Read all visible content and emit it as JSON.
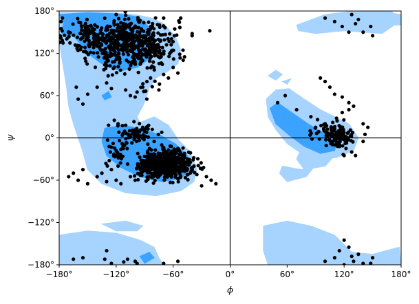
{
  "chart_data": {
    "type": "scatter",
    "xlabel": "ϕ",
    "ylabel": "ψ",
    "xlim": [
      -180,
      180
    ],
    "ylim": [
      -180,
      180
    ],
    "x_ticks": [
      {
        "value": -180,
        "label": "−180°"
      },
      {
        "value": -120,
        "label": "−120°"
      },
      {
        "value": -60,
        "label": "−60°"
      },
      {
        "value": 0,
        "label": "0°"
      },
      {
        "value": 60,
        "label": "60°"
      },
      {
        "value": 120,
        "label": "120°"
      },
      {
        "value": 180,
        "label": "180°"
      }
    ],
    "y_ticks": [
      {
        "value": -180,
        "label": "−180°"
      },
      {
        "value": -120,
        "label": "−120°"
      },
      {
        "value": -60,
        "label": "−60°"
      },
      {
        "value": 0,
        "label": "0°"
      },
      {
        "value": 60,
        "label": "60°"
      },
      {
        "value": 120,
        "label": "120°"
      },
      {
        "value": 180,
        "label": "180°"
      }
    ],
    "reference_lines": {
      "x": 0,
      "y": 0
    },
    "grid": false,
    "colors": {
      "points": "#000000",
      "allowed_region": "#a6d4ff",
      "favored_region": "#3ba3ff",
      "reference_line": "#000000"
    },
    "regions": {
      "allowed": [
        [
          [
            -180,
            178
          ],
          [
            -125,
            178
          ],
          [
            -100,
            175
          ],
          [
            -82,
            170
          ],
          [
            -70,
            162
          ],
          [
            -58,
            145
          ],
          [
            -52,
            125
          ],
          [
            -55,
            105
          ],
          [
            -65,
            95
          ],
          [
            -78,
            85
          ],
          [
            -85,
            72
          ],
          [
            -88,
            58
          ],
          [
            -92,
            45
          ],
          [
            -98,
            30
          ],
          [
            -95,
            22
          ],
          [
            -80,
            30
          ],
          [
            -65,
            18
          ],
          [
            -55,
            -2
          ],
          [
            -42,
            -20
          ],
          [
            -35,
            -45
          ],
          [
            -38,
            -62
          ],
          [
            -52,
            -75
          ],
          [
            -78,
            -82
          ],
          [
            -110,
            -78
          ],
          [
            -135,
            -65
          ],
          [
            -150,
            -45
          ],
          [
            -155,
            -20
          ],
          [
            -160,
            0
          ],
          [
            -165,
            20
          ],
          [
            -170,
            45
          ],
          [
            -172,
            70
          ],
          [
            -175,
            95
          ],
          [
            -178,
            120
          ],
          [
            -180,
            140
          ]
        ],
        [
          [
            -180,
            -138
          ],
          [
            -150,
            -132
          ],
          [
            -120,
            -135
          ],
          [
            -95,
            -145
          ],
          [
            -80,
            -155
          ],
          [
            -75,
            -170
          ],
          [
            -70,
            -180
          ],
          [
            -180,
            -180
          ]
        ],
        [
          [
            -135,
            -122
          ],
          [
            -110,
            -118
          ],
          [
            -92,
            -125
          ],
          [
            -98,
            -132
          ],
          [
            -120,
            -132
          ]
        ],
        [
          [
            38,
            55
          ],
          [
            48,
            68
          ],
          [
            62,
            70
          ],
          [
            78,
            55
          ],
          [
            95,
            40
          ],
          [
            110,
            30
          ],
          [
            125,
            20
          ],
          [
            135,
            0
          ],
          [
            130,
            -18
          ],
          [
            112,
            -28
          ],
          [
            90,
            -30
          ],
          [
            75,
            -22
          ],
          [
            60,
            -8
          ],
          [
            48,
            12
          ],
          [
            40,
            30
          ]
        ],
        [
          [
            55,
            -40
          ],
          [
            75,
            -45
          ],
          [
            88,
            -42
          ],
          [
            80,
            -55
          ],
          [
            60,
            -62
          ],
          [
            52,
            -50
          ]
        ],
        [
          [
            75,
            -15
          ],
          [
            95,
            -22
          ],
          [
            110,
            -25
          ],
          [
            100,
            -40
          ],
          [
            78,
            -45
          ],
          [
            70,
            -30
          ]
        ],
        [
          [
            70,
            160
          ],
          [
            100,
            175
          ],
          [
            130,
            180
          ],
          [
            170,
            180
          ],
          [
            178,
            165
          ],
          [
            160,
            148
          ],
          [
            120,
            152
          ],
          [
            90,
            148
          ],
          [
            72,
            152
          ]
        ],
        [
          [
            35,
            -125
          ],
          [
            60,
            -118
          ],
          [
            85,
            -125
          ],
          [
            110,
            -138
          ],
          [
            128,
            -162
          ],
          [
            150,
            -165
          ],
          [
            178,
            -155
          ],
          [
            180,
            -180
          ],
          [
            40,
            -180
          ],
          [
            35,
            -160
          ]
        ],
        [
          [
            40,
            88
          ],
          [
            48,
            96
          ],
          [
            55,
            90
          ],
          [
            48,
            82
          ]
        ],
        [
          [
            55,
            80
          ],
          [
            64,
            84
          ],
          [
            60,
            76
          ]
        ],
        [
          [
            165,
            178
          ],
          [
            180,
            175
          ],
          [
            180,
            160
          ],
          [
            168,
            160
          ]
        ]
      ],
      "favored": [
        [
          [
            -180,
            175
          ],
          [
            -150,
            178
          ],
          [
            -118,
            176
          ],
          [
            -98,
            172
          ],
          [
            -90,
            165
          ],
          [
            -82,
            150
          ],
          [
            -78,
            132
          ],
          [
            -85,
            112
          ],
          [
            -98,
            100
          ],
          [
            -115,
            95
          ],
          [
            -132,
            102
          ],
          [
            -148,
            118
          ],
          [
            -162,
            140
          ],
          [
            -172,
            155
          ]
        ],
        [
          [
            -175,
            165
          ],
          [
            -165,
            150
          ],
          [
            -170,
            140
          ],
          [
            -178,
            150
          ]
        ],
        [
          [
            -132,
            14
          ],
          [
            -112,
            18
          ],
          [
            -92,
            12
          ],
          [
            -75,
            5
          ],
          [
            -58,
            -8
          ],
          [
            -45,
            -25
          ],
          [
            -42,
            -45
          ],
          [
            -52,
            -58
          ],
          [
            -72,
            -62
          ],
          [
            -95,
            -55
          ],
          [
            -115,
            -42
          ],
          [
            -130,
            -25
          ],
          [
            -135,
            -5
          ]
        ],
        [
          [
            42,
            42
          ],
          [
            50,
            50
          ],
          [
            65,
            36
          ],
          [
            82,
            20
          ],
          [
            100,
            6
          ],
          [
            112,
            -8
          ],
          [
            110,
            -18
          ],
          [
            95,
            -22
          ],
          [
            78,
            -12
          ],
          [
            62,
            4
          ],
          [
            48,
            20
          ]
        ],
        [
          [
            -135,
            60
          ],
          [
            -128,
            66
          ],
          [
            -125,
            58
          ],
          [
            -132,
            54
          ]
        ],
        [
          [
            -95,
            -168
          ],
          [
            -85,
            -162
          ],
          [
            -80,
            -170
          ],
          [
            -90,
            -178
          ]
        ]
      ]
    },
    "clusters": [
      {
        "cx": -110,
        "cy": 140,
        "rx": 50,
        "ry": 28,
        "count": 460
      },
      {
        "cx": -85,
        "cy": 120,
        "rx": 22,
        "ry": 20,
        "count": 60
      },
      {
        "cx": -150,
        "cy": 145,
        "rx": 18,
        "ry": 20,
        "count": 55
      },
      {
        "cx": -120,
        "cy": 110,
        "rx": 20,
        "ry": 20,
        "count": 40
      },
      {
        "cx": -68,
        "cy": -38,
        "rx": 24,
        "ry": 17,
        "count": 620
      },
      {
        "cx": -100,
        "cy": 5,
        "rx": 17,
        "ry": 14,
        "count": 55
      },
      {
        "cx": -118,
        "cy": -22,
        "rx": 12,
        "ry": 16,
        "count": 30
      },
      {
        "cx": -85,
        "cy": 75,
        "rx": 10,
        "ry": 12,
        "count": 10
      },
      {
        "cx": 115,
        "cy": 0,
        "rx": 13,
        "ry": 14,
        "count": 100
      },
      {
        "cx": 100,
        "cy": 10,
        "rx": 18,
        "ry": 10,
        "count": 30
      }
    ],
    "points": [
      [
        -155,
        -170
      ],
      [
        -165,
        -172
      ],
      [
        -132,
        -172
      ],
      [
        -125,
        -178
      ],
      [
        -100,
        -175
      ],
      [
        -108,
        -172
      ],
      [
        -112,
        -176
      ],
      [
        -98,
        -178
      ],
      [
        -70,
        -178
      ],
      [
        -55,
        -175
      ],
      [
        -130,
        -160
      ],
      [
        -178,
        155
      ],
      [
        -178,
        165
      ],
      [
        -120,
        175
      ],
      [
        -70,
        170
      ],
      [
        -52,
        170
      ],
      [
        -40,
        148
      ],
      [
        -48,
        115
      ],
      [
        -55,
        92
      ],
      [
        -60,
        100
      ],
      [
        -162,
        72
      ],
      [
        -160,
        55
      ],
      [
        -155,
        48
      ],
      [
        -150,
        62
      ],
      [
        -140,
        72
      ],
      [
        -130,
        78
      ],
      [
        -125,
        70
      ],
      [
        -110,
        68
      ],
      [
        -105,
        60
      ],
      [
        -100,
        58
      ],
      [
        -98,
        65
      ],
      [
        -92,
        72
      ],
      [
        -70,
        90
      ],
      [
        -65,
        85
      ],
      [
        -75,
        68
      ],
      [
        -170,
        -55
      ],
      [
        -165,
        -50
      ],
      [
        -160,
        -60
      ],
      [
        -155,
        -45
      ],
      [
        -150,
        -65
      ],
      [
        -140,
        -55
      ],
      [
        -135,
        -50
      ],
      [
        -130,
        -62
      ],
      [
        -125,
        -45
      ],
      [
        -120,
        -60
      ],
      [
        -118,
        -40
      ],
      [
        -115,
        -65
      ],
      [
        -105,
        -55
      ],
      [
        -100,
        -60
      ],
      [
        -28,
        -42
      ],
      [
        -25,
        -55
      ],
      [
        -20,
        -60
      ],
      [
        -15,
        -65
      ],
      [
        -30,
        -68
      ],
      [
        -35,
        -52
      ],
      [
        -38,
        -40
      ],
      [
        -45,
        -30
      ],
      [
        -48,
        -22
      ],
      [
        -55,
        -15
      ],
      [
        -62,
        -12
      ],
      [
        -72,
        -10
      ],
      [
        -80,
        -5
      ],
      [
        -88,
        8
      ],
      [
        -82,
        12
      ],
      [
        -72,
        8
      ],
      [
        -92,
        15
      ],
      [
        -110,
        18
      ],
      [
        -118,
        20
      ],
      [
        -122,
        25
      ],
      [
        -128,
        18
      ],
      [
        100,
        170
      ],
      [
        110,
        165
      ],
      [
        118,
        158
      ],
      [
        125,
        150
      ],
      [
        132,
        162
      ],
      [
        140,
        150
      ],
      [
        148,
        158
      ],
      [
        150,
        145
      ],
      [
        128,
        175
      ],
      [
        135,
        168
      ],
      [
        95,
        85
      ],
      [
        100,
        80
      ],
      [
        105,
        72
      ],
      [
        110,
        62
      ],
      [
        118,
        58
      ],
      [
        125,
        50
      ],
      [
        130,
        45
      ],
      [
        125,
        40
      ],
      [
        118,
        36
      ],
      [
        112,
        28
      ],
      [
        108,
        22
      ],
      [
        100,
        20
      ],
      [
        92,
        26
      ],
      [
        85,
        30
      ],
      [
        90,
        15
      ],
      [
        70,
        40
      ],
      [
        58,
        60
      ],
      [
        50,
        50
      ],
      [
        140,
        20
      ],
      [
        145,
        15
      ],
      [
        142,
        5
      ],
      [
        140,
        -5
      ],
      [
        132,
        -25
      ],
      [
        128,
        -20
      ],
      [
        122,
        -15
      ],
      [
        120,
        -25
      ],
      [
        120,
        -145
      ],
      [
        125,
        -155
      ],
      [
        128,
        -168
      ],
      [
        130,
        -175
      ],
      [
        110,
        -170
      ],
      [
        100,
        -175
      ],
      [
        150,
        -170
      ],
      [
        148,
        -178
      ],
      [
        140,
        -178
      ],
      [
        135,
        -165
      ],
      [
        115,
        -160
      ],
      [
        120,
        -180
      ]
    ]
  }
}
